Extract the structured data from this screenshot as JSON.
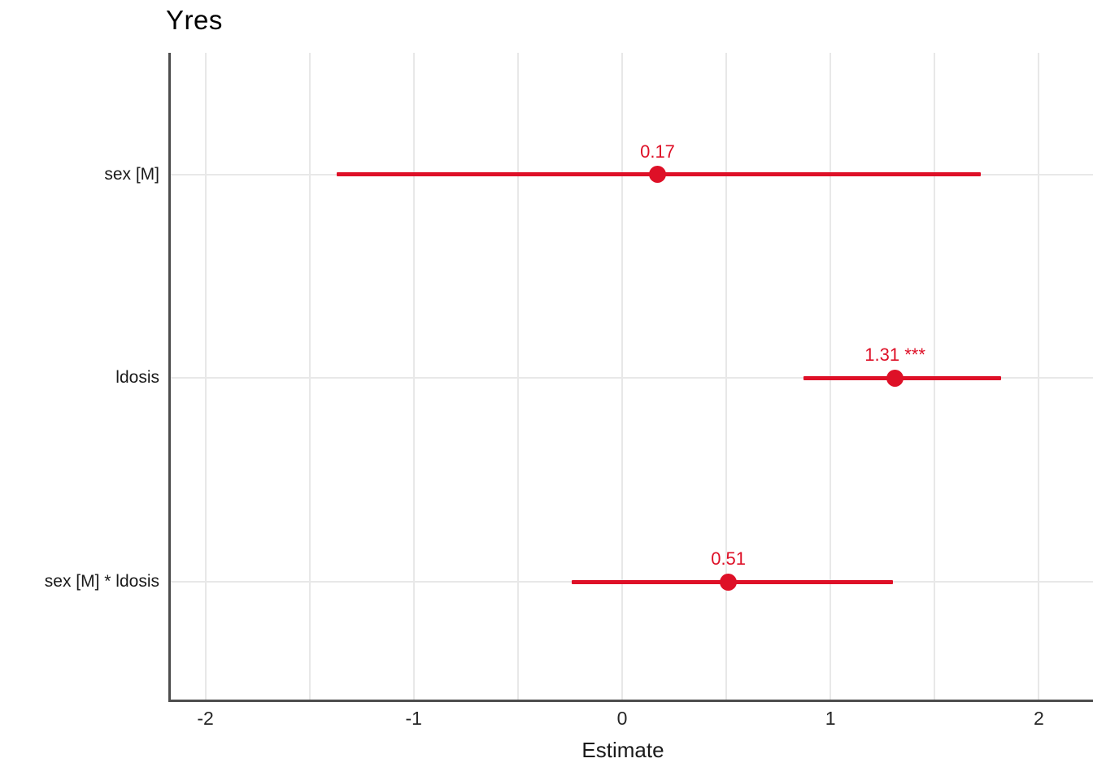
{
  "chart_data": {
    "type": "scatter",
    "subtype": "coefficient_forest_plot",
    "title": "Yres",
    "xlabel": "Estimate",
    "ylabel": "",
    "xlim": [
      -2.17,
      2.26
    ],
    "x_ticks": [
      -2,
      -1,
      0,
      1,
      2
    ],
    "x_gridlines": [
      -2,
      -1.5,
      -1,
      -0.5,
      0,
      0.5,
      1,
      1.5,
      2
    ],
    "grid": true,
    "legend": "none",
    "rows": [
      {
        "term": "sex [M]",
        "estimate": 0.17,
        "ci_low": -1.37,
        "ci_high": 1.72,
        "value_label": "0.17",
        "significance": "",
        "y_frac": 0.188
      },
      {
        "term": "ldosis",
        "estimate": 1.31,
        "ci_low": 0.87,
        "ci_high": 1.82,
        "value_label": "1.31 ***",
        "significance": "***",
        "y_frac": 0.502
      },
      {
        "term": "sex [M] * ldosis",
        "estimate": 0.51,
        "ci_low": -0.24,
        "ci_high": 1.3,
        "value_label": "0.51",
        "significance": "",
        "y_frac": 0.817
      }
    ],
    "colors": {
      "point": "#DE1027",
      "grid": "#E8E8E8",
      "axis": "#4D4D4D",
      "title_text": "#000000",
      "tick_text": "#262626",
      "label_text": "#1a1a1a"
    }
  }
}
